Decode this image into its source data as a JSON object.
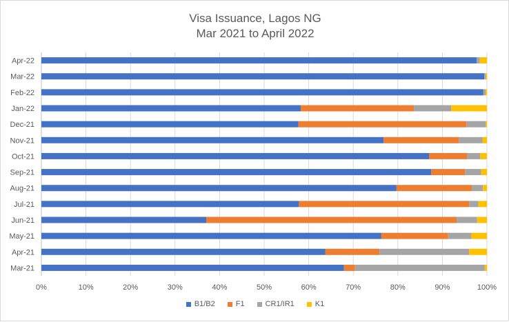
{
  "chart_data": {
    "type": "bar",
    "orientation": "horizontal",
    "stacking": "percent",
    "title_line1": "Visa Issuance, Lagos NG",
    "title_line2": "Mar 2021 to April 2022",
    "categories": [
      "Apr-22",
      "Mar-22",
      "Feb-22",
      "Jan-22",
      "Dec-21",
      "Nov-21",
      "Oct-21",
      "Sep-21",
      "Aug-21",
      "Jul-21",
      "Jun-21",
      "May-21",
      "Apr-21",
      "Mar-21"
    ],
    "series": [
      {
        "name": "B1/B2",
        "color": "#4472c4",
        "values": [
          97.7,
          99.4,
          99.2,
          58.2,
          57.7,
          76.8,
          87.0,
          87.5,
          79.7,
          57.8,
          37.0,
          76.3,
          63.7,
          67.9
        ]
      },
      {
        "name": "F1",
        "color": "#ed7d31",
        "values": [
          0,
          0,
          0,
          25.4,
          37.7,
          16.9,
          8.6,
          7.6,
          16.9,
          38.2,
          56.2,
          15.0,
          12.2,
          2.5
        ]
      },
      {
        "name": "CR1/IR1",
        "color": "#a5a5a5",
        "values": [
          0.7,
          0.3,
          0.5,
          8.4,
          4.3,
          5.3,
          2.9,
          3.6,
          2.5,
          2.1,
          4.6,
          5.2,
          20.1,
          29.1
        ]
      },
      {
        "name": "K1",
        "color": "#ffc000",
        "values": [
          1.6,
          0.3,
          0.3,
          8.0,
          0.3,
          1.0,
          1.5,
          1.3,
          0.9,
          1.9,
          2.2,
          3.5,
          4.0,
          0.5
        ]
      }
    ],
    "xlim": [
      0,
      100
    ],
    "x_ticks": [
      "0%",
      "10%",
      "20%",
      "30%",
      "40%",
      "50%",
      "60%",
      "70%",
      "80%",
      "90%",
      "100%"
    ],
    "grid": "vertical",
    "legend_position": "bottom"
  }
}
